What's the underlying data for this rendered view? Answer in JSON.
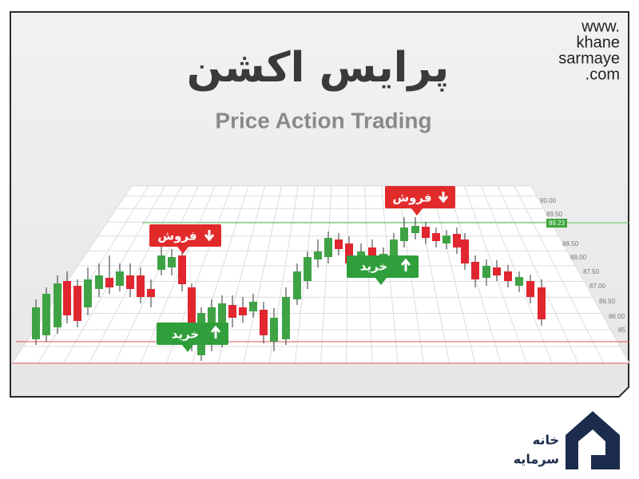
{
  "header": {
    "title": "پرایس اکشن",
    "subtitle": "Price Action Trading",
    "website": [
      "www.",
      "khane",
      "sarmaye",
      ".com"
    ]
  },
  "signals": {
    "sell": [
      "فروش",
      "فروش"
    ],
    "buy": [
      "خرید",
      "خرید"
    ]
  },
  "price_scale": {
    "labels": [
      "90.00",
      "89.50",
      "88.50",
      "88.00",
      "87.50",
      "87.00",
      "86.50",
      "86.00",
      "85"
    ],
    "current": "89.23"
  },
  "logo": [
    "خانه",
    "سرمایه"
  ]
}
